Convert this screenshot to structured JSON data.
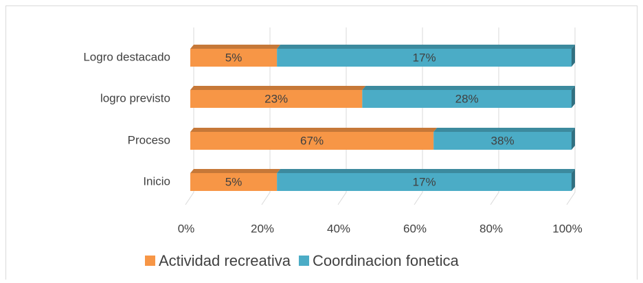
{
  "chart_data": {
    "type": "bar",
    "orientation": "horizontal",
    "stacking": "percent",
    "categories": [
      "Logro destacado",
      "logro previsto",
      "Proceso",
      "Inicio"
    ],
    "series": [
      {
        "name": "Actividad recreativa",
        "color": "#f79646",
        "values": [
          5,
          23,
          67,
          5
        ],
        "value_labels": [
          "5%",
          "23%",
          "67%",
          "5%"
        ]
      },
      {
        "name": "Coordinacion fonetica",
        "color": "#4bacc6",
        "values": [
          17,
          28,
          38,
          17
        ],
        "value_labels": [
          "17%",
          "28%",
          "38%",
          "17%"
        ]
      }
    ],
    "xlim": [
      0,
      100
    ],
    "xticks": [
      {
        "value": 0,
        "label": "0%"
      },
      {
        "value": 20,
        "label": "20%"
      },
      {
        "value": 40,
        "label": "40%"
      },
      {
        "value": 60,
        "label": "60%"
      },
      {
        "value": 80,
        "label": "80%"
      },
      {
        "value": 100,
        "label": "100%"
      }
    ],
    "grid": true,
    "legend": "bottom"
  }
}
